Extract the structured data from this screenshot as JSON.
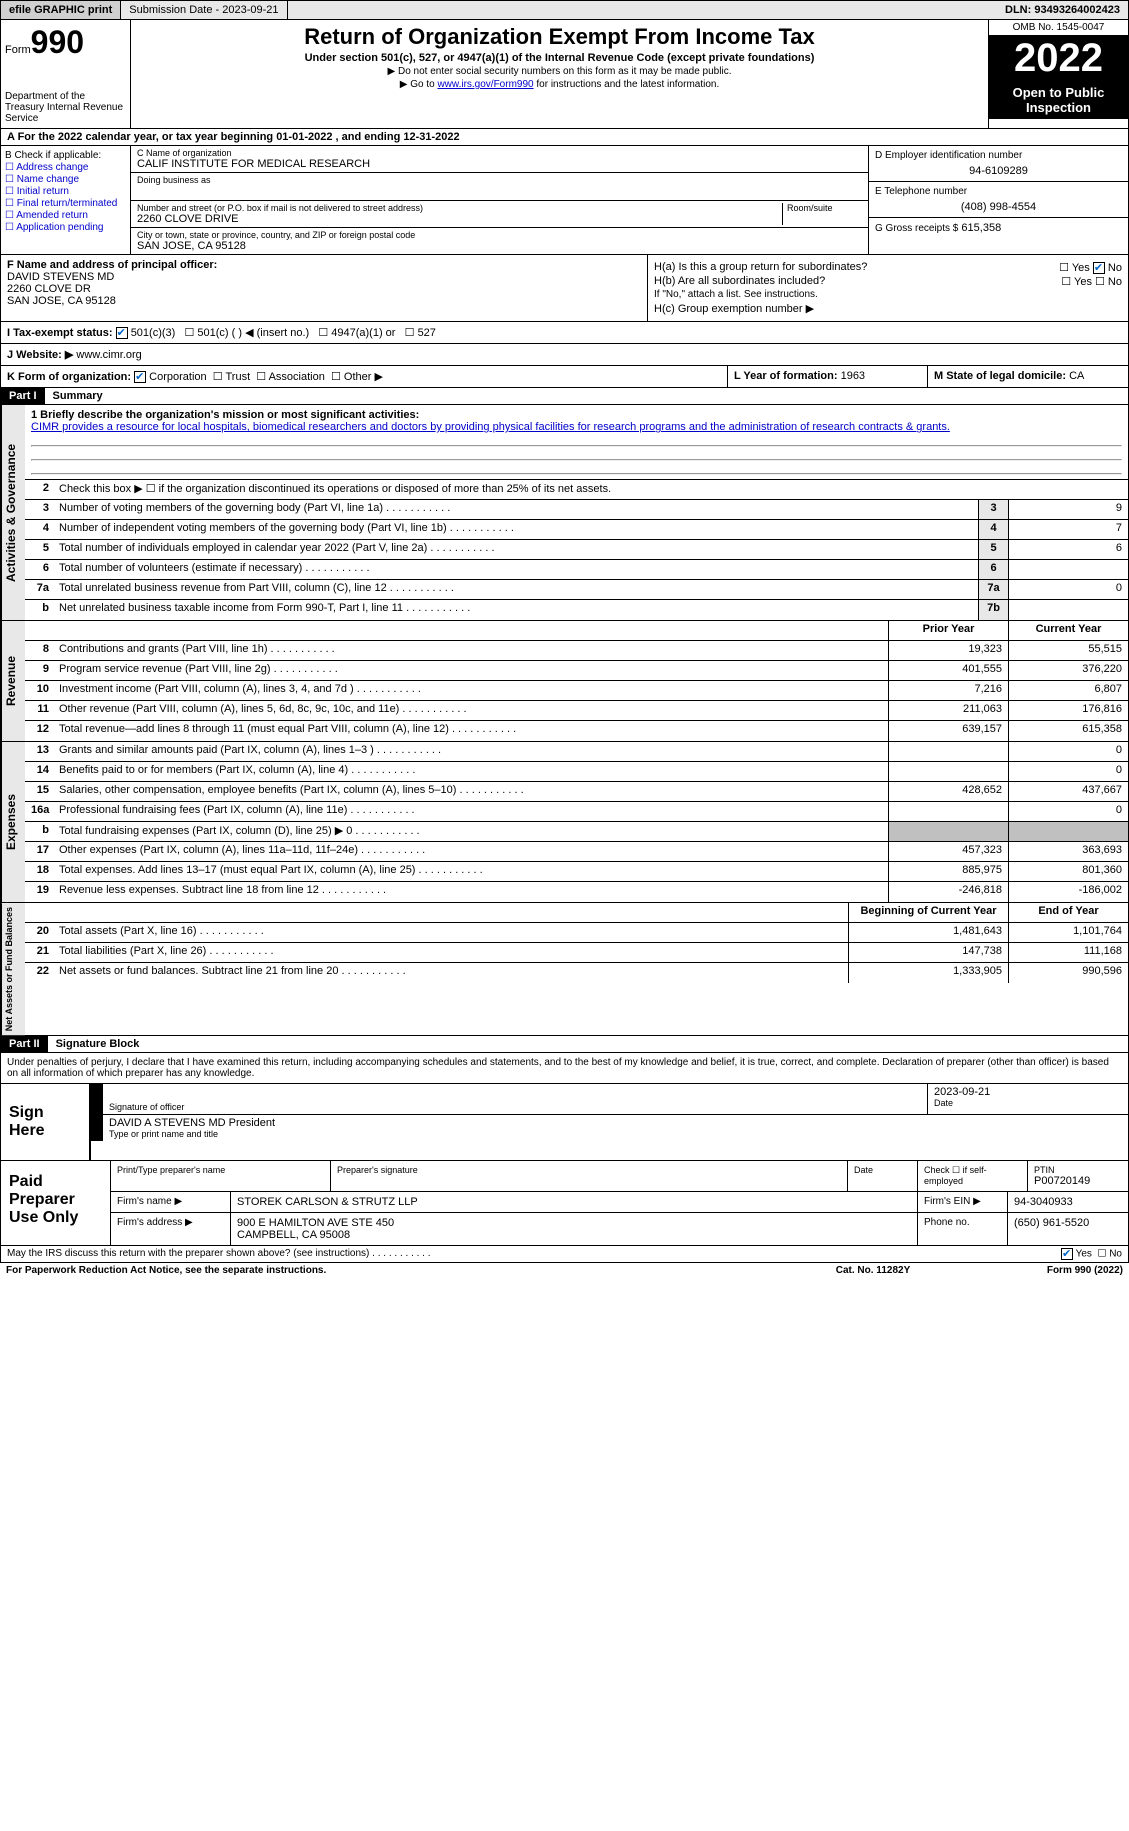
{
  "topbar": {
    "efile": "efile GRAPHIC print",
    "submission": "Submission Date - 2023-09-21",
    "dln": "DLN: 93493264002423"
  },
  "header": {
    "form_label": "Form",
    "form_num": "990",
    "dept": "Department of the Treasury Internal Revenue Service",
    "title": "Return of Organization Exempt From Income Tax",
    "subtitle": "Under section 501(c), 527, or 4947(a)(1) of the Internal Revenue Code (except private foundations)",
    "note1": "▶ Do not enter social security numbers on this form as it may be made public.",
    "note2_pre": "▶ Go to ",
    "note2_link": "www.irs.gov/Form990",
    "note2_post": " for instructions and the latest information.",
    "omb": "OMB No. 1545-0047",
    "year": "2022",
    "open": "Open to Public Inspection"
  },
  "rowA": "A For the 2022 calendar year, or tax year beginning 01-01-2022    , and ending 12-31-2022",
  "colB": {
    "title": "B Check if applicable:",
    "items": [
      "Address change",
      "Name change",
      "Initial return",
      "Final return/terminated",
      "Amended return",
      "Application pending"
    ]
  },
  "colC": {
    "name_label": "C Name of organization",
    "name": "CALIF INSTITUTE FOR MEDICAL RESEARCH",
    "dba_label": "Doing business as",
    "addr_label": "Number and street (or P.O. box if mail is not delivered to street address)",
    "room_label": "Room/suite",
    "addr": "2260 CLOVE DRIVE",
    "city_label": "City or town, state or province, country, and ZIP or foreign postal code",
    "city": "SAN JOSE, CA  95128"
  },
  "colD": {
    "ein_label": "D Employer identification number",
    "ein": "94-6109289",
    "phone_label": "E Telephone number",
    "phone": "(408) 998-4554",
    "gross_label": "G Gross receipts $",
    "gross": "615,358"
  },
  "rowF": {
    "label": "F Name and address of principal officer:",
    "name": "DAVID STEVENS MD",
    "addr1": "2260 CLOVE DR",
    "addr2": "SAN JOSE, CA  95128"
  },
  "rowH": {
    "ha": "H(a)  Is this a group return for subordinates?",
    "hb": "H(b)  Are all subordinates included?",
    "hb_note": "If \"No,\" attach a list. See instructions.",
    "hc": "H(c)  Group exemption number ▶"
  },
  "rowI": {
    "label": "I Tax-exempt status:",
    "opts": [
      "501(c)(3)",
      "501(c) (  ) ◀ (insert no.)",
      "4947(a)(1) or",
      "527"
    ]
  },
  "rowJ": {
    "label": "J Website: ▶",
    "val": "www.cimr.org"
  },
  "rowK": {
    "label": "K Form of organization:",
    "corp": "Corporation",
    "trust": "Trust",
    "assoc": "Association",
    "other": "Other ▶",
    "l_label": "L Year of formation:",
    "l_val": "1963",
    "m_label": "M State of legal domicile:",
    "m_val": "CA"
  },
  "part1": {
    "hdr": "Part I",
    "title": "Summary",
    "line1_label": "1  Briefly describe the organization's mission or most significant activities:",
    "mission": "CIMR provides a resource for local hospitals, biomedical researchers and doctors by providing physical facilities for research programs and the administration of research contracts & grants.",
    "line2": "Check this box ▶ ☐ if the organization discontinued its operations or disposed of more than 25% of its net assets.",
    "sides": {
      "ag": "Activities & Governance",
      "rev": "Revenue",
      "exp": "Expenses",
      "na": "Net Assets or Fund Balances"
    },
    "lines": [
      {
        "n": "3",
        "d": "Number of voting members of the governing body (Part VI, line 1a)",
        "b": "3",
        "v": "9"
      },
      {
        "n": "4",
        "d": "Number of independent voting members of the governing body (Part VI, line 1b)",
        "b": "4",
        "v": "7"
      },
      {
        "n": "5",
        "d": "Total number of individuals employed in calendar year 2022 (Part V, line 2a)",
        "b": "5",
        "v": "6"
      },
      {
        "n": "6",
        "d": "Total number of volunteers (estimate if necessary)",
        "b": "6",
        "v": ""
      },
      {
        "n": "7a",
        "d": "Total unrelated business revenue from Part VIII, column (C), line 12",
        "b": "7a",
        "v": "0"
      },
      {
        "n": "b",
        "d": "Net unrelated business taxable income from Form 990-T, Part I, line 11",
        "b": "7b",
        "v": ""
      }
    ],
    "col_prior": "Prior Year",
    "col_curr": "Current Year",
    "rev_lines": [
      {
        "n": "8",
        "d": "Contributions and grants (Part VIII, line 1h)",
        "p": "19,323",
        "c": "55,515"
      },
      {
        "n": "9",
        "d": "Program service revenue (Part VIII, line 2g)",
        "p": "401,555",
        "c": "376,220"
      },
      {
        "n": "10",
        "d": "Investment income (Part VIII, column (A), lines 3, 4, and 7d )",
        "p": "7,216",
        "c": "6,807"
      },
      {
        "n": "11",
        "d": "Other revenue (Part VIII, column (A), lines 5, 6d, 8c, 9c, 10c, and 11e)",
        "p": "211,063",
        "c": "176,816"
      },
      {
        "n": "12",
        "d": "Total revenue—add lines 8 through 11 (must equal Part VIII, column (A), line 12)",
        "p": "639,157",
        "c": "615,358"
      }
    ],
    "exp_lines": [
      {
        "n": "13",
        "d": "Grants and similar amounts paid (Part IX, column (A), lines 1–3 )",
        "p": "",
        "c": "0"
      },
      {
        "n": "14",
        "d": "Benefits paid to or for members (Part IX, column (A), line 4)",
        "p": "",
        "c": "0"
      },
      {
        "n": "15",
        "d": "Salaries, other compensation, employee benefits (Part IX, column (A), lines 5–10)",
        "p": "428,652",
        "c": "437,667"
      },
      {
        "n": "16a",
        "d": "Professional fundraising fees (Part IX, column (A), line 11e)",
        "p": "",
        "c": "0"
      },
      {
        "n": "b",
        "d": "Total fundraising expenses (Part IX, column (D), line 25) ▶ 0",
        "p": "SHADE",
        "c": "SHADE"
      },
      {
        "n": "17",
        "d": "Other expenses (Part IX, column (A), lines 11a–11d, 11f–24e)",
        "p": "457,323",
        "c": "363,693"
      },
      {
        "n": "18",
        "d": "Total expenses. Add lines 13–17 (must equal Part IX, column (A), line 25)",
        "p": "885,975",
        "c": "801,360"
      },
      {
        "n": "19",
        "d": "Revenue less expenses. Subtract line 18 from line 12",
        "p": "-246,818",
        "c": "-186,002"
      }
    ],
    "col_beg": "Beginning of Current Year",
    "col_end": "End of Year",
    "na_lines": [
      {
        "n": "20",
        "d": "Total assets (Part X, line 16)",
        "p": "1,481,643",
        "c": "1,101,764"
      },
      {
        "n": "21",
        "d": "Total liabilities (Part X, line 26)",
        "p": "147,738",
        "c": "111,168"
      },
      {
        "n": "22",
        "d": "Net assets or fund balances. Subtract line 21 from line 20",
        "p": "1,333,905",
        "c": "990,596"
      }
    ]
  },
  "part2": {
    "hdr": "Part II",
    "title": "Signature Block",
    "decl": "Under penalties of perjury, I declare that I have examined this return, including accompanying schedules and statements, and to the best of my knowledge and belief, it is true, correct, and complete. Declaration of preparer (other than officer) is based on all information of which preparer has any knowledge."
  },
  "sign": {
    "label": "Sign Here",
    "sig_label": "Signature of officer",
    "date": "2023-09-21",
    "date_label": "Date",
    "name": "DAVID A STEVENS MD  President",
    "name_label": "Type or print name and title"
  },
  "prep": {
    "label": "Paid Preparer Use Only",
    "r1": {
      "a": "Print/Type preparer's name",
      "b": "Preparer's signature",
      "c": "Date",
      "d": "Check ☐ if self-employed",
      "e_label": "PTIN",
      "e": "P00720149"
    },
    "r2": {
      "a": "Firm's name    ▶",
      "b": "STOREK CARLSON & STRUTZ LLP",
      "c": "Firm's EIN ▶",
      "d": "94-3040933"
    },
    "r3": {
      "a": "Firm's address ▶",
      "b": "900 E HAMILTON AVE STE 450",
      "c": "Phone no.",
      "d": "(650) 961-5520"
    },
    "r3b": "CAMPBELL, CA  95008"
  },
  "footer": {
    "q": "May the IRS discuss this return with the preparer shown above? (see instructions)",
    "yes": "Yes",
    "no": "No",
    "pra": "For Paperwork Reduction Act Notice, see the separate instructions.",
    "cat": "Cat. No. 11282Y",
    "form": "Form 990 (2022)"
  }
}
